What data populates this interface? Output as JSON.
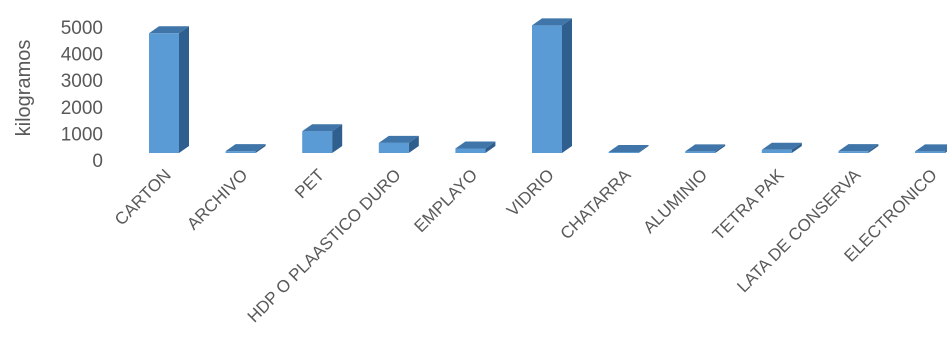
{
  "chart_data": {
    "type": "bar",
    "style": "3d-column",
    "ylabel": "kilogramos",
    "ylim": [
      0,
      5000
    ],
    "yticks": [
      "0",
      "1000",
      "2000",
      "3000",
      "4000",
      "5000"
    ],
    "grid": false,
    "legend": "none",
    "categories": [
      "CARTON",
      "ARCHIVO",
      "PET",
      "HDP O PLAASTICO DURO",
      "EMPLAYO",
      "VIDRIO",
      "CHATARRA",
      "ALUMINIO",
      "TETRA PAK",
      "LATA DE CONSERVA",
      "ELECTRONICO"
    ],
    "values": [
      4500,
      70,
      820,
      380,
      170,
      4800,
      20,
      60,
      120,
      70,
      60
    ],
    "colors": {
      "front": "#5b9bd5",
      "side": "#2e5f8e",
      "top": "#3f75a8"
    }
  }
}
